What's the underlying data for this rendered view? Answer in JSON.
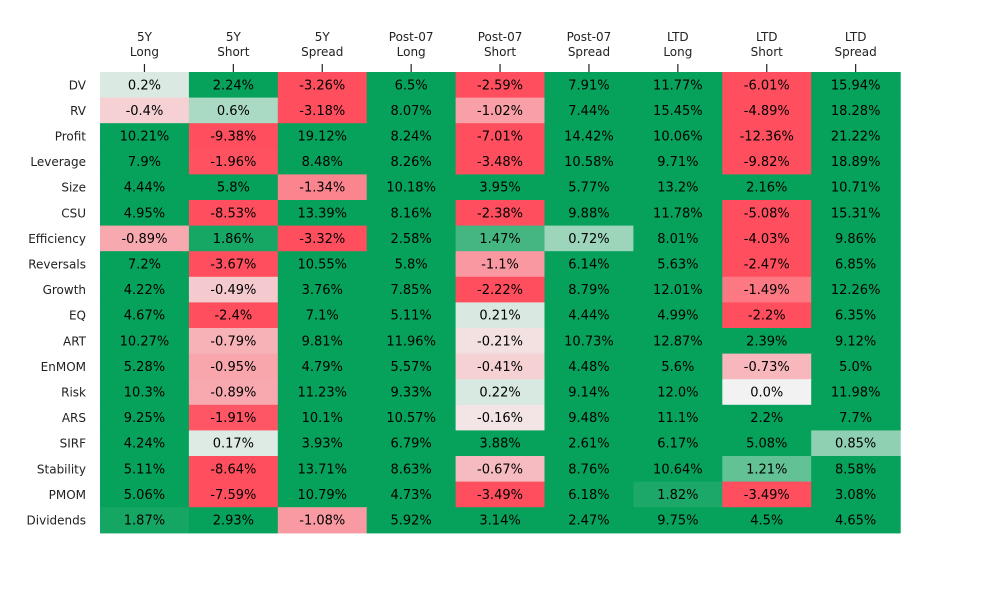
{
  "chart_data": {
    "type": "heatmap",
    "columns": [
      [
        "5Y",
        "Long"
      ],
      [
        "5Y",
        "Short"
      ],
      [
        "5Y",
        "Spread"
      ],
      [
        "Post-07",
        "Long"
      ],
      [
        "Post-07",
        "Short"
      ],
      [
        "Post-07",
        "Spread"
      ],
      [
        "LTD",
        "Long"
      ],
      [
        "LTD",
        "Short"
      ],
      [
        "LTD",
        "Spread"
      ]
    ],
    "rows": [
      "DV",
      "RV",
      "Profit",
      "Leverage",
      "Size",
      "CSU",
      "Efficiency",
      "Reversals",
      "Growth",
      "EQ",
      "ART",
      "EnMOM",
      "Risk",
      "ARS",
      "SIRF",
      "Stability",
      "PMOM",
      "Dividends"
    ],
    "values": [
      [
        0.2,
        2.24,
        -3.26,
        6.5,
        -2.59,
        7.91,
        11.77,
        -6.01,
        15.94
      ],
      [
        -0.4,
        0.6,
        -3.18,
        8.07,
        -1.02,
        7.44,
        15.45,
        -4.89,
        18.28
      ],
      [
        10.21,
        -9.38,
        19.12,
        8.24,
        -7.01,
        14.42,
        10.06,
        -12.36,
        21.22
      ],
      [
        7.9,
        -1.96,
        8.48,
        8.26,
        -3.48,
        10.58,
        9.71,
        -9.82,
        18.89
      ],
      [
        4.44,
        5.8,
        -1.34,
        10.18,
        3.95,
        5.77,
        13.2,
        2.16,
        10.71
      ],
      [
        4.95,
        -8.53,
        13.39,
        8.16,
        -2.38,
        9.88,
        11.78,
        -5.08,
        15.31
      ],
      [
        -0.89,
        1.86,
        -3.32,
        2.58,
        1.47,
        0.72,
        8.01,
        -4.03,
        9.86
      ],
      [
        7.2,
        -3.67,
        10.55,
        5.8,
        -1.1,
        6.14,
        5.63,
        -2.47,
        6.85
      ],
      [
        4.22,
        -0.49,
        3.76,
        7.85,
        -2.22,
        8.79,
        12.01,
        -1.49,
        12.26
      ],
      [
        4.67,
        -2.4,
        7.1,
        5.11,
        0.21,
        4.44,
        4.99,
        -2.2,
        6.35
      ],
      [
        10.27,
        -0.79,
        9.81,
        11.96,
        -0.21,
        10.73,
        12.87,
        2.39,
        9.12
      ],
      [
        5.28,
        -0.95,
        4.79,
        5.57,
        -0.41,
        4.48,
        5.6,
        -0.73,
        5.0
      ],
      [
        10.3,
        -0.89,
        11.23,
        9.33,
        0.22,
        9.14,
        12.0,
        0.0,
        11.98
      ],
      [
        9.25,
        -1.91,
        10.1,
        10.57,
        -0.16,
        9.48,
        11.1,
        2.2,
        7.7
      ],
      [
        4.24,
        0.17,
        3.93,
        6.79,
        3.88,
        2.61,
        6.17,
        5.08,
        0.85
      ],
      [
        5.11,
        -8.64,
        13.71,
        8.63,
        -0.67,
        8.76,
        10.64,
        1.21,
        8.58
      ],
      [
        5.06,
        -7.59,
        10.79,
        4.73,
        -3.49,
        6.18,
        1.82,
        -3.49,
        3.08
      ],
      [
        1.87,
        2.93,
        -1.08,
        5.92,
        3.14,
        2.47,
        9.75,
        4.5,
        4.65
      ]
    ],
    "value_suffix": "%",
    "color_scale": {
      "min": -2,
      "max": 2,
      "negative": "#ff4f5e",
      "neutral": "#f2f2f2",
      "positive": "#06a15a"
    },
    "grid": false,
    "legend": "none"
  }
}
